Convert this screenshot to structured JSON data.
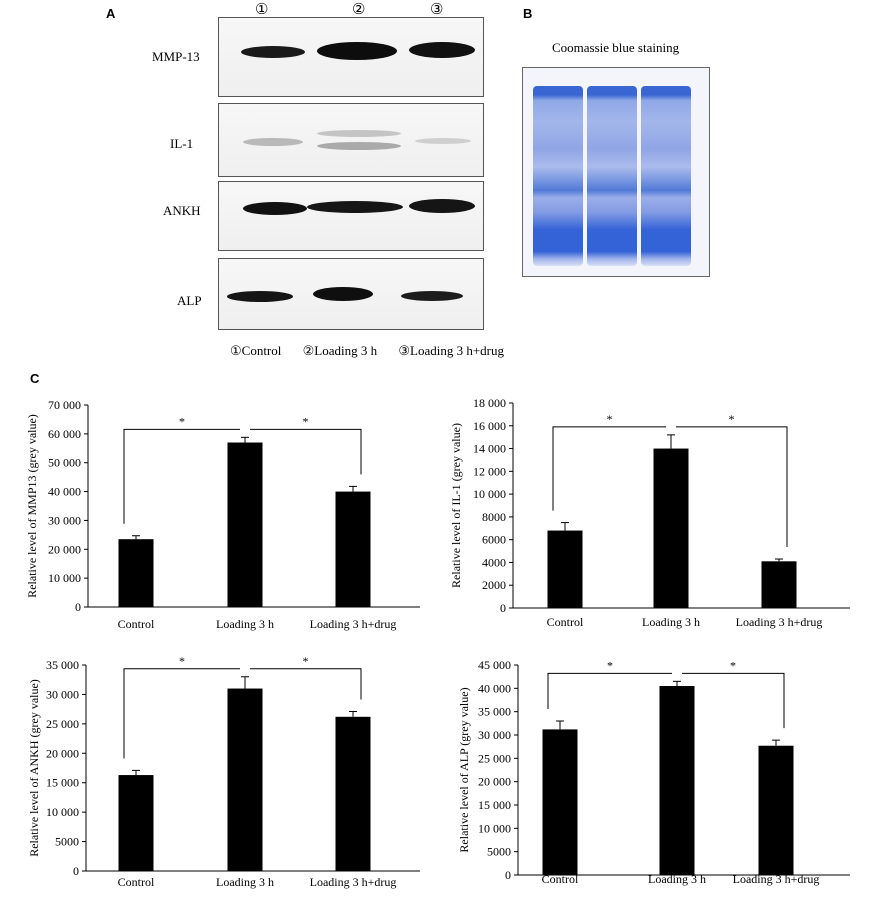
{
  "panels": {
    "a_label": "A",
    "b_label": "B",
    "c_label": "C"
  },
  "blot": {
    "lane_numbers": [
      "①",
      "②",
      "③"
    ],
    "rows": [
      "MMP-13",
      "IL-1",
      "ANKH",
      "ALP"
    ],
    "legend": [
      "①Control",
      "②Loading 3 h",
      "③Loading 3 h+drug"
    ]
  },
  "gel": {
    "title": "Coomassie blue staining"
  },
  "colors": {
    "bar": "#000000",
    "gel_blue": "#2f5fd0"
  },
  "chart_data": [
    {
      "type": "bar",
      "categories": [
        "Control",
        "Loading 3 h",
        "Loading 3 h+drug"
      ],
      "values": [
        23500,
        57000,
        40000
      ],
      "errors": [
        1200,
        1800,
        1800
      ],
      "ylabel": "Relative level of MMP13 (grey value)",
      "ylim": [
        0,
        70000
      ],
      "yticks": [
        "0",
        "10 000",
        "20 000",
        "30 000",
        "40 000",
        "50 000",
        "60 000",
        "70 000"
      ],
      "significance": [
        "*",
        "*"
      ]
    },
    {
      "type": "bar",
      "categories": [
        "Control",
        "Loading 3 h",
        "Loading 3 h+drug"
      ],
      "values": [
        6800,
        14000,
        4100
      ],
      "errors": [
        700,
        1200,
        200
      ],
      "ylabel": "Relative level of IL-1 (grey value)",
      "ylim": [
        0,
        18000
      ],
      "yticks": [
        "0",
        "2000",
        "4000",
        "6000",
        "8000",
        "10 000",
        "12 000",
        "14 000",
        "16 000",
        "18 000"
      ],
      "significance": [
        "*",
        "*"
      ]
    },
    {
      "type": "bar",
      "categories": [
        "Control",
        "Loading 3 h",
        "Loading 3 h+drug"
      ],
      "values": [
        16300,
        31000,
        26200
      ],
      "errors": [
        800,
        2000,
        900
      ],
      "ylabel": "Relative level of ANKH (grey value)",
      "ylim": [
        0,
        35000
      ],
      "yticks": [
        "0",
        "5000",
        "10 000",
        "15 000",
        "20 000",
        "25 000",
        "30 000",
        "35 000"
      ],
      "significance": [
        "*",
        "*"
      ]
    },
    {
      "type": "bar",
      "categories": [
        "Control",
        "Loading 3 h",
        "Loading 3 h+drug"
      ],
      "values": [
        31200,
        40500,
        27700
      ],
      "errors": [
        1800,
        1000,
        1200
      ],
      "ylabel": "Relative level of ALP (grey value)",
      "ylim": [
        0,
        45000
      ],
      "yticks": [
        "0",
        "5000",
        "10 000",
        "15 000",
        "20 000",
        "25 000",
        "30 000",
        "35 000",
        "40 000",
        "45 000"
      ],
      "significance": [
        "*",
        "*"
      ]
    }
  ]
}
